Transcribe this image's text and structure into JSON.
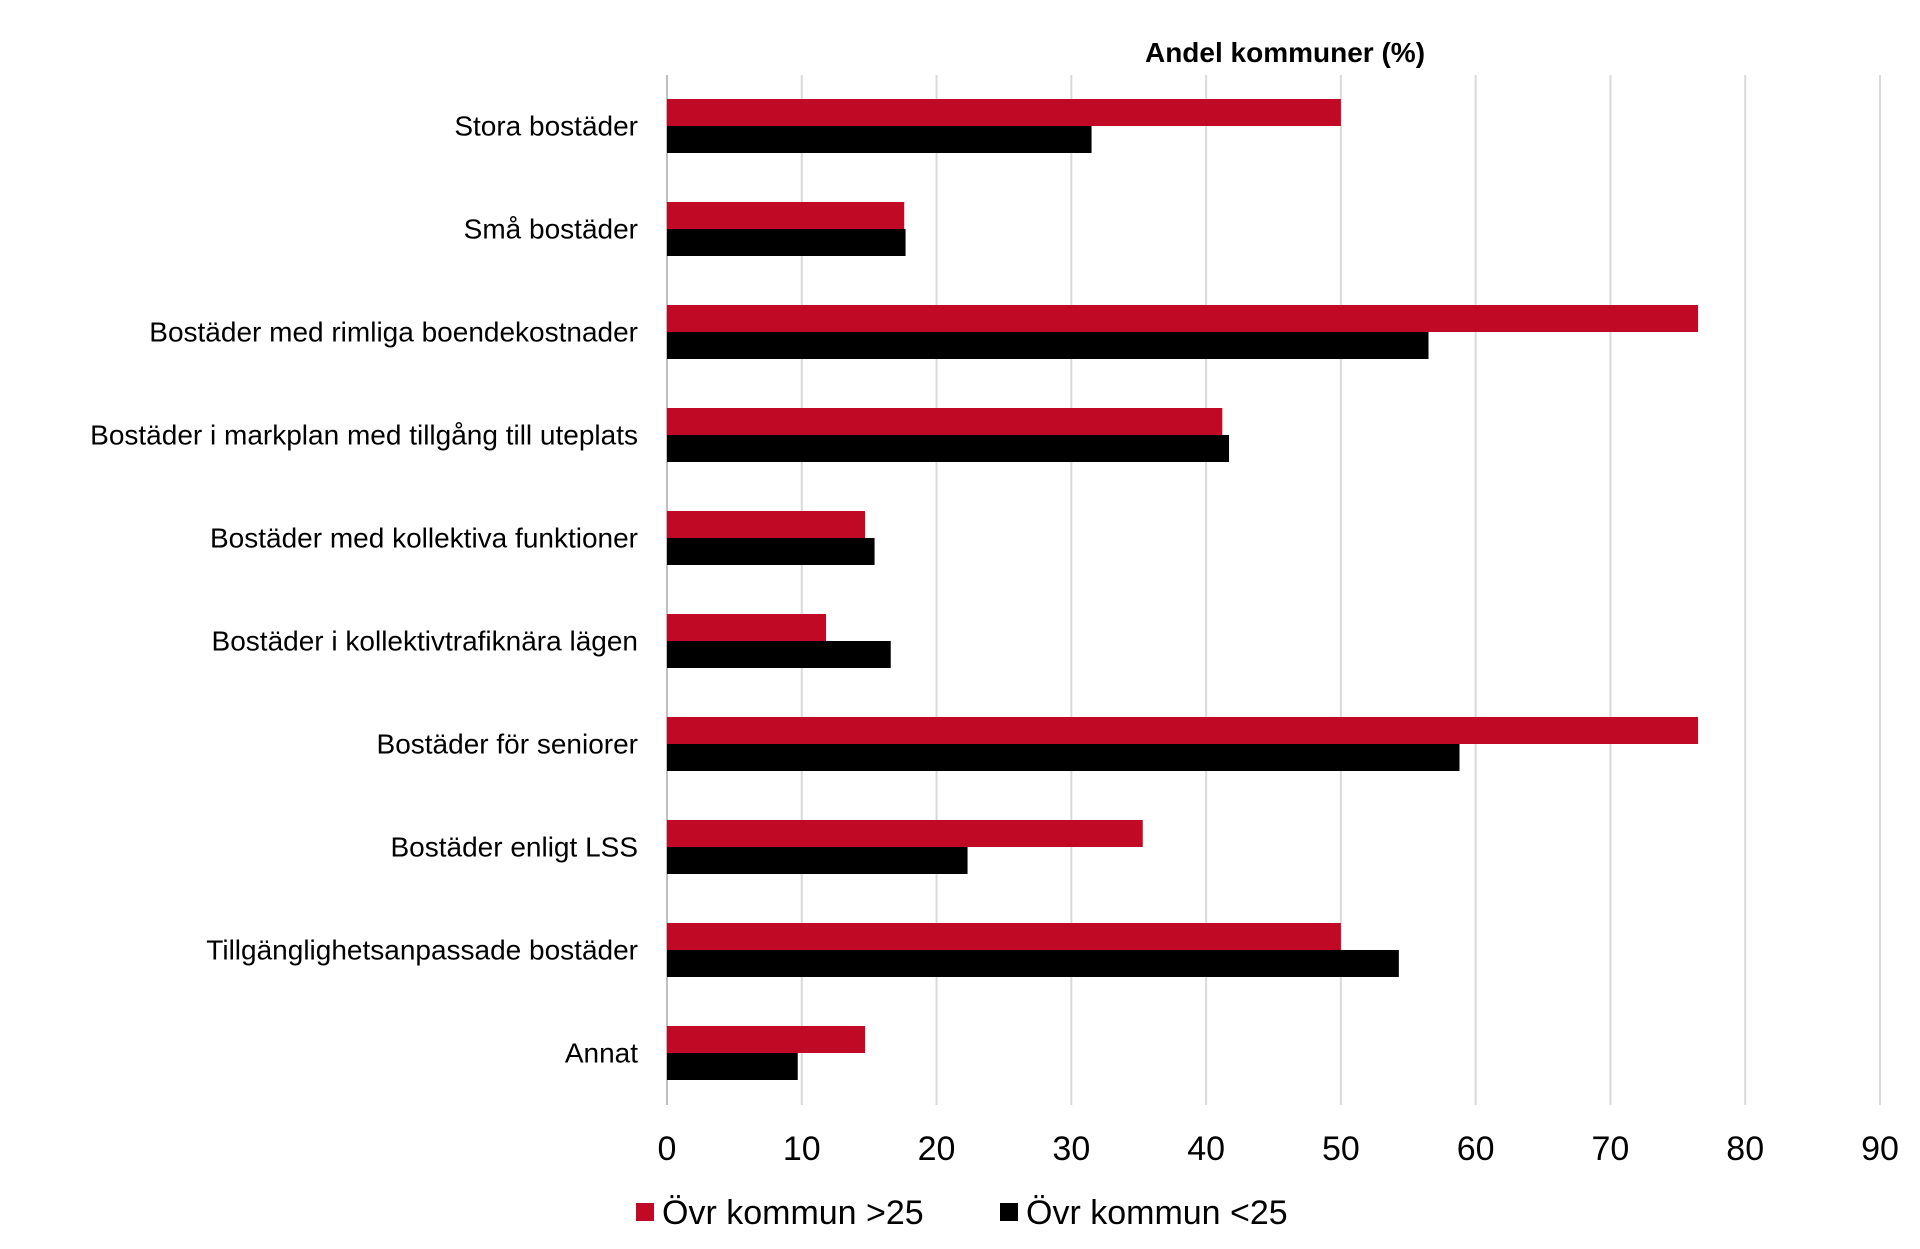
{
  "chart_data": {
    "type": "bar",
    "orientation": "horizontal",
    "title": "",
    "xlabel": "Andel kommuner (%)",
    "ylabel": "",
    "xlim": [
      0,
      90
    ],
    "ticks": [
      0,
      10,
      20,
      30,
      40,
      50,
      60,
      70,
      80,
      90
    ],
    "grid": true,
    "legend_position": "bottom",
    "categories": [
      "Stora bostäder",
      "Små bostäder",
      "Bostäder med rimliga boendekostnader",
      "Bostäder i markplan med tillgång till uteplats",
      "Bostäder med kollektiva funktioner",
      "Bostäder i kollektivtrafiknära lägen",
      "Bostäder för seniorer",
      "Bostäder enligt LSS",
      "Tillgänglighetsanpassade bostäder",
      "Annat"
    ],
    "series": [
      {
        "name": "Övr kommun >25",
        "color": "#c00a25",
        "values": [
          50.0,
          17.6,
          76.5,
          41.2,
          14.7,
          11.8,
          76.5,
          35.3,
          50.0,
          14.7
        ]
      },
      {
        "name": "Övr kommun <25",
        "color": "#000000",
        "values": [
          31.5,
          17.7,
          56.5,
          41.7,
          15.4,
          16.6,
          58.8,
          22.3,
          54.3,
          9.7
        ]
      }
    ]
  }
}
